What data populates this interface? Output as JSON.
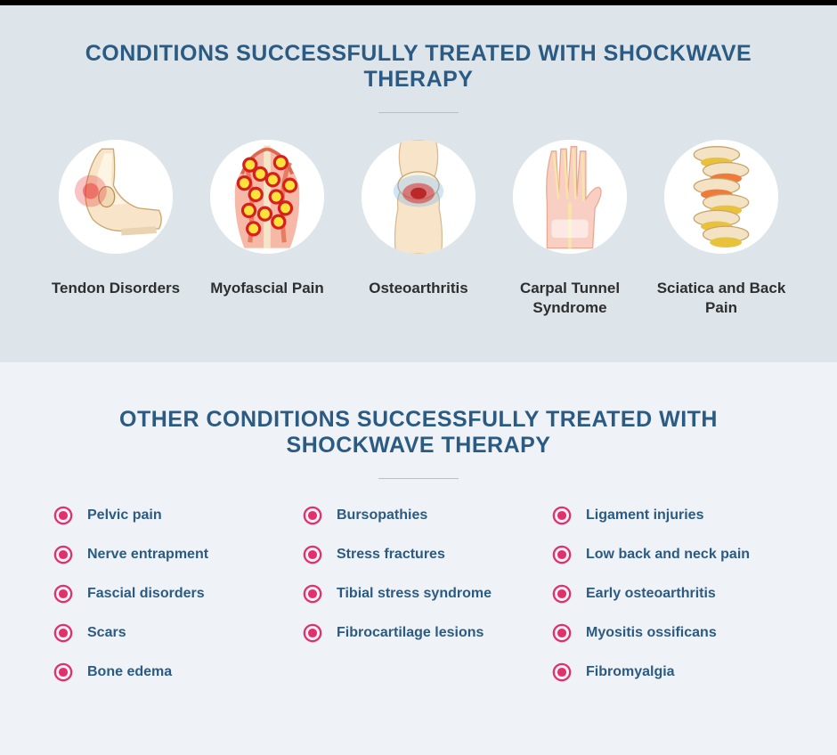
{
  "colors": {
    "heading": "#2b5b83",
    "section1_bg": "#dde5ea",
    "section2_bg": "#eff2f6",
    "label_dark": "#2e2e2e",
    "bullet_outer": "#e2306d",
    "bullet_inner": "#e2306d",
    "divider": "#b8c0c6"
  },
  "typography": {
    "heading_fontsize": 25,
    "heading_weight": 800,
    "icon_label_fontsize": 17,
    "bullet_fontsize": 16
  },
  "section1": {
    "title": "CONDITIONS SUCCESSFULLY TREATED WITH SHOCKWAVE THERAPY",
    "items": [
      {
        "label": "Tendon Disorders",
        "icon": "ankle"
      },
      {
        "label": "Myofascial Pain",
        "icon": "back-muscles"
      },
      {
        "label": "Osteoarthritis",
        "icon": "knee"
      },
      {
        "label": "Carpal Tunnel Syndrome",
        "icon": "hand"
      },
      {
        "label": "Sciatica and Back Pain",
        "icon": "spine"
      }
    ]
  },
  "section2": {
    "title": "OTHER CONDITIONS SUCCESSFULLY TREATED WITH SHOCKWAVE THERAPY",
    "columns": [
      [
        "Pelvic pain",
        "Nerve entrapment",
        "Fascial disorders",
        "Scars",
        "Bone edema"
      ],
      [
        "Bursopathies",
        "Stress fractures",
        "Tibial stress syndrome",
        "Fibrocartilage lesions"
      ],
      [
        "Ligament injuries",
        "Low back and neck pain",
        "Early osteoarthritis",
        "Myositis ossificans",
        "Fibromyalgia"
      ]
    ]
  }
}
